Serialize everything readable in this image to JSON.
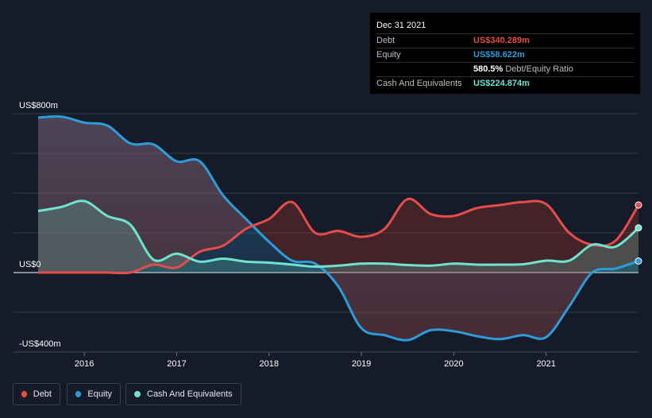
{
  "tooltip": {
    "date": "Dec 31 2021",
    "rows": {
      "debt": {
        "label": "Debt",
        "value": "US$340.289m",
        "color": "#e64c4c"
      },
      "equity": {
        "label": "Equity",
        "value": "US$58.622m",
        "color": "#2d9cdb"
      },
      "ratio": {
        "label": "",
        "value": "580.5%",
        "suffix": "Debt/Equity Ratio",
        "color": "#ffffff"
      },
      "cash": {
        "label": "Cash And Equivalents",
        "value": "US$224.874m",
        "color": "#6fe3cf"
      }
    }
  },
  "legend": {
    "debt": "Debt",
    "equity": "Equity",
    "cash": "Cash And Equivalents"
  },
  "chart_data": {
    "type": "area",
    "y_unit": "US$ millions",
    "ylim": [
      -400,
      800
    ],
    "yticks": [
      {
        "value": 800,
        "label": "US$800m"
      },
      {
        "value": 0,
        "label": "US$0"
      },
      {
        "value": -400,
        "label": "-US$400m"
      }
    ],
    "xlim": [
      2015.5,
      2022.0
    ],
    "xticks": [
      {
        "value": 2016,
        "label": "2016"
      },
      {
        "value": 2017,
        "label": "2017"
      },
      {
        "value": 2018,
        "label": "2018"
      },
      {
        "value": 2019,
        "label": "2019"
      },
      {
        "value": 2020,
        "label": "2020"
      },
      {
        "value": 2021,
        "label": "2021"
      }
    ],
    "grid": true,
    "legend_position": "bottom-left",
    "series": [
      {
        "name": "Debt",
        "color": "#e64c4c",
        "points": [
          [
            2015.5,
            0
          ],
          [
            2016.0,
            0
          ],
          [
            2016.25,
            0
          ],
          [
            2016.5,
            0
          ],
          [
            2016.75,
            40
          ],
          [
            2017.0,
            25
          ],
          [
            2017.25,
            105
          ],
          [
            2017.5,
            135
          ],
          [
            2017.75,
            220
          ],
          [
            2018.0,
            270
          ],
          [
            2018.25,
            355
          ],
          [
            2018.5,
            200
          ],
          [
            2018.75,
            210
          ],
          [
            2019.0,
            180
          ],
          [
            2019.25,
            220
          ],
          [
            2019.5,
            370
          ],
          [
            2019.75,
            295
          ],
          [
            2020.0,
            285
          ],
          [
            2020.25,
            325
          ],
          [
            2020.5,
            340
          ],
          [
            2020.75,
            355
          ],
          [
            2021.0,
            345
          ],
          [
            2021.25,
            200
          ],
          [
            2021.5,
            140
          ],
          [
            2021.75,
            160
          ],
          [
            2022.0,
            340
          ]
        ]
      },
      {
        "name": "Equity",
        "color": "#2d9cdb",
        "points": [
          [
            2015.5,
            780
          ],
          [
            2015.75,
            785
          ],
          [
            2016.0,
            755
          ],
          [
            2016.25,
            740
          ],
          [
            2016.5,
            650
          ],
          [
            2016.75,
            645
          ],
          [
            2017.0,
            560
          ],
          [
            2017.25,
            560
          ],
          [
            2017.5,
            390
          ],
          [
            2017.75,
            270
          ],
          [
            2018.0,
            155
          ],
          [
            2018.25,
            60
          ],
          [
            2018.5,
            45
          ],
          [
            2018.75,
            -70
          ],
          [
            2019.0,
            -280
          ],
          [
            2019.25,
            -315
          ],
          [
            2019.5,
            -340
          ],
          [
            2019.75,
            -290
          ],
          [
            2020.0,
            -295
          ],
          [
            2020.25,
            -320
          ],
          [
            2020.5,
            -335
          ],
          [
            2020.75,
            -315
          ],
          [
            2021.0,
            -325
          ],
          [
            2021.25,
            -170
          ],
          [
            2021.5,
            0
          ],
          [
            2021.75,
            20
          ],
          [
            2022.0,
            58
          ]
        ]
      },
      {
        "name": "Cash And Equivalents",
        "color": "#6fe3cf",
        "points": [
          [
            2015.5,
            310
          ],
          [
            2015.75,
            330
          ],
          [
            2016.0,
            360
          ],
          [
            2016.25,
            285
          ],
          [
            2016.5,
            240
          ],
          [
            2016.75,
            65
          ],
          [
            2017.0,
            95
          ],
          [
            2017.25,
            55
          ],
          [
            2017.5,
            70
          ],
          [
            2017.75,
            55
          ],
          [
            2018.0,
            50
          ],
          [
            2018.25,
            40
          ],
          [
            2018.5,
            30
          ],
          [
            2018.75,
            35
          ],
          [
            2019.0,
            45
          ],
          [
            2019.25,
            45
          ],
          [
            2019.5,
            38
          ],
          [
            2019.75,
            35
          ],
          [
            2020.0,
            45
          ],
          [
            2020.25,
            40
          ],
          [
            2020.5,
            40
          ],
          [
            2020.75,
            42
          ],
          [
            2021.0,
            60
          ],
          [
            2021.25,
            60
          ],
          [
            2021.5,
            140
          ],
          [
            2021.75,
            130
          ],
          [
            2022.0,
            225
          ]
        ]
      }
    ]
  }
}
